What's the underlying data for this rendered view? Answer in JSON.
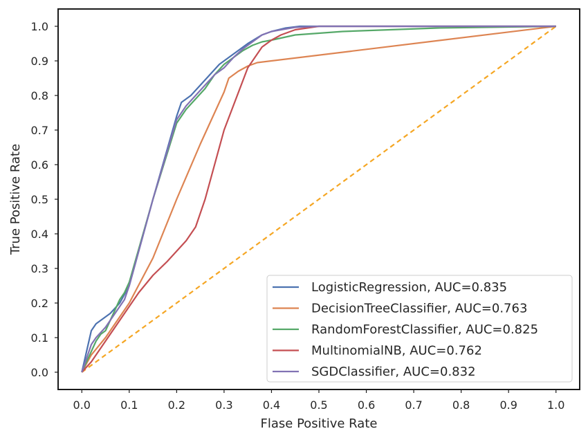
{
  "chart_data": {
    "type": "line",
    "title": "",
    "xlabel": "Flase Positive Rate",
    "ylabel": "True Positive Rate",
    "xlim": [
      -0.05,
      1.05
    ],
    "ylim": [
      -0.05,
      1.05
    ],
    "xticks": [
      "0.0",
      "0.1",
      "0.2",
      "0.3",
      "0.4",
      "0.5",
      "0.6",
      "0.7",
      "0.8",
      "0.9",
      "1.0"
    ],
    "yticks": [
      "0.0",
      "0.1",
      "0.2",
      "0.3",
      "0.4",
      "0.5",
      "0.6",
      "0.7",
      "0.8",
      "0.9",
      "1.0"
    ],
    "grid": false,
    "legend_position": "lower-right",
    "series": [
      {
        "name": "LogisticRegression, AUC=0.835",
        "color": "#4c72b0",
        "x": [
          0,
          0.005,
          0.01,
          0.015,
          0.02,
          0.03,
          0.04,
          0.05,
          0.06,
          0.08,
          0.1,
          0.15,
          0.2,
          0.21,
          0.23,
          0.25,
          0.27,
          0.29,
          0.31,
          0.33,
          0.35,
          0.38,
          0.4,
          0.43,
          0.46,
          0.5,
          0.6,
          0.8,
          1.0
        ],
        "y": [
          0,
          0.03,
          0.06,
          0.09,
          0.12,
          0.14,
          0.15,
          0.16,
          0.17,
          0.2,
          0.25,
          0.5,
          0.74,
          0.78,
          0.8,
          0.83,
          0.86,
          0.89,
          0.91,
          0.93,
          0.95,
          0.975,
          0.985,
          0.995,
          1.0,
          1.0,
          1.0,
          1.0,
          1.0
        ]
      },
      {
        "name": "DecisionTreeClassifier, AUC=0.763",
        "color": "#dd8452",
        "x": [
          0,
          0.02,
          0.05,
          0.1,
          0.15,
          0.2,
          0.25,
          0.3,
          0.31,
          0.33,
          0.35,
          0.37,
          1.0
        ],
        "y": [
          0,
          0.05,
          0.1,
          0.2,
          0.33,
          0.5,
          0.66,
          0.81,
          0.85,
          0.87,
          0.885,
          0.895,
          1.0
        ]
      },
      {
        "name": "RandomForestClassifier, AUC=0.825",
        "color": "#55a868",
        "x": [
          0,
          0.01,
          0.02,
          0.03,
          0.04,
          0.05,
          0.06,
          0.07,
          0.08,
          0.09,
          0.1,
          0.15,
          0.2,
          0.22,
          0.24,
          0.26,
          0.28,
          0.3,
          0.32,
          0.34,
          0.36,
          0.38,
          0.4,
          0.45,
          0.55,
          0.65,
          0.75,
          1.0
        ],
        "y": [
          0,
          0.03,
          0.06,
          0.09,
          0.11,
          0.12,
          0.15,
          0.18,
          0.21,
          0.23,
          0.26,
          0.5,
          0.72,
          0.76,
          0.79,
          0.82,
          0.86,
          0.89,
          0.91,
          0.93,
          0.945,
          0.955,
          0.96,
          0.975,
          0.985,
          0.99,
          0.995,
          1.0
        ]
      },
      {
        "name": "MultinomialNB, AUC=0.762",
        "color": "#c44e52",
        "x": [
          0,
          0.02,
          0.04,
          0.06,
          0.08,
          0.1,
          0.12,
          0.15,
          0.18,
          0.2,
          0.22,
          0.24,
          0.26,
          0.3,
          0.35,
          0.38,
          0.4,
          0.42,
          0.45,
          0.5,
          0.6,
          0.8,
          1.0
        ],
        "y": [
          0,
          0.03,
          0.07,
          0.11,
          0.15,
          0.19,
          0.23,
          0.28,
          0.32,
          0.35,
          0.38,
          0.42,
          0.5,
          0.7,
          0.88,
          0.94,
          0.96,
          0.975,
          0.99,
          1.0,
          1.0,
          1.0,
          1.0
        ]
      },
      {
        "name": "SGDClassifier, AUC=0.832",
        "color": "#8172b3",
        "x": [
          0,
          0.005,
          0.01,
          0.02,
          0.03,
          0.05,
          0.07,
          0.09,
          0.1,
          0.15,
          0.2,
          0.22,
          0.24,
          0.26,
          0.28,
          0.3,
          0.32,
          0.34,
          0.36,
          0.38,
          0.4,
          0.42,
          0.45,
          0.5,
          0.7,
          1.0
        ],
        "y": [
          0,
          0.02,
          0.04,
          0.08,
          0.1,
          0.13,
          0.17,
          0.21,
          0.25,
          0.5,
          0.73,
          0.77,
          0.8,
          0.83,
          0.86,
          0.88,
          0.91,
          0.935,
          0.955,
          0.975,
          0.985,
          0.99,
          0.997,
          1.0,
          1.0,
          1.0
        ]
      }
    ],
    "reference_line": {
      "x": [
        0,
        1
      ],
      "y": [
        0,
        1
      ],
      "color": "#f5a623",
      "style": "dashed"
    }
  }
}
